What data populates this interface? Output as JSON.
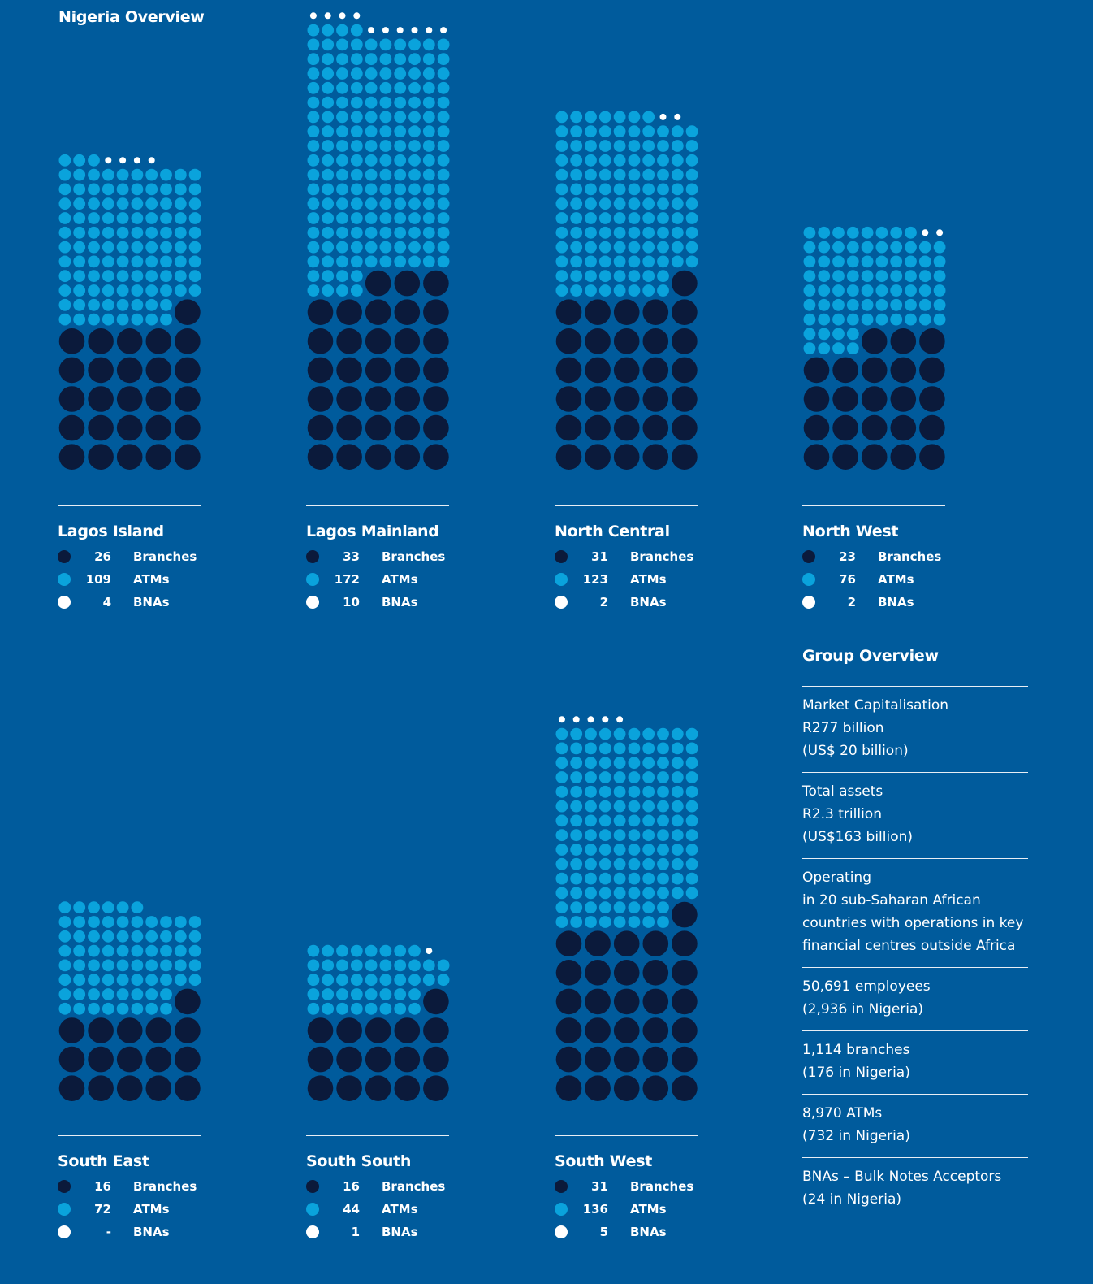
{
  "page_title": "Nigeria Overview",
  "colors": {
    "background": "#005b9c",
    "branches": "#0b1a3b",
    "atms": "#0aa3dc",
    "bnas": "#ffffff",
    "rule": "#e8eef5"
  },
  "legend_labels": {
    "branches": "Branches",
    "atms": "ATMs",
    "bnas": "BNAs"
  },
  "chart_data": {
    "type": "unit-dot-chart",
    "unit_note": "",
    "series": [
      {
        "key": "branches",
        "name": "Branches"
      },
      {
        "key": "atms",
        "name": "ATMs"
      },
      {
        "key": "bnas",
        "name": "BNAs"
      }
    ],
    "regions": [
      {
        "id": "lagos-island",
        "name": "Lagos Island",
        "branches": 26,
        "atms": 109,
        "bnas": 4,
        "branches_text": "26",
        "atms_text": "109",
        "bnas_text": "4"
      },
      {
        "id": "lagos-mainland",
        "name": "Lagos Mainland",
        "branches": 33,
        "atms": 172,
        "bnas": 10,
        "branches_text": "33",
        "atms_text": "172",
        "bnas_text": "10"
      },
      {
        "id": "north-central",
        "name": "North Central",
        "branches": 31,
        "atms": 123,
        "bnas": 2,
        "branches_text": "31",
        "atms_text": "123",
        "bnas_text": "2"
      },
      {
        "id": "north-west",
        "name": "North West",
        "branches": 23,
        "atms": 76,
        "bnas": 2,
        "branches_text": "23",
        "atms_text": "76",
        "bnas_text": "2"
      },
      {
        "id": "south-east",
        "name": "South East",
        "branches": 16,
        "atms": 72,
        "bnas": 0,
        "branches_text": "16",
        "atms_text": "72",
        "bnas_text": "-"
      },
      {
        "id": "south-south",
        "name": "South South",
        "branches": 16,
        "atms": 44,
        "bnas": 1,
        "branches_text": "16",
        "atms_text": "44",
        "bnas_text": "1"
      },
      {
        "id": "south-west",
        "name": "South West",
        "branches": 31,
        "atms": 136,
        "bnas": 5,
        "branches_text": "31",
        "atms_text": "136",
        "bnas_text": "5"
      }
    ]
  },
  "group_overview": {
    "title": "Group Overview",
    "items": [
      {
        "lines": [
          "Market Capitalisation",
          "R277 billion",
          "(US$ 20 billion)"
        ]
      },
      {
        "lines": [
          "Total assets",
          "R2.3 trillion",
          "(US$163 billion)"
        ]
      },
      {
        "lines": [
          "Operating",
          "in 20 sub-Saharan African",
          "countries with operations in key",
          "financial centres outside Africa"
        ]
      },
      {
        "lines": [
          "50,691 employees",
          "(2,936 in Nigeria)"
        ]
      },
      {
        "lines": [
          "1,114  branches",
          "(176 in Nigeria)"
        ]
      },
      {
        "lines": [
          "8,970  ATMs",
          "(732 in Nigeria)"
        ]
      },
      {
        "lines": [
          "BNAs – Bulk Notes Acceptors",
          "(24 in Nigeria)"
        ]
      }
    ]
  }
}
